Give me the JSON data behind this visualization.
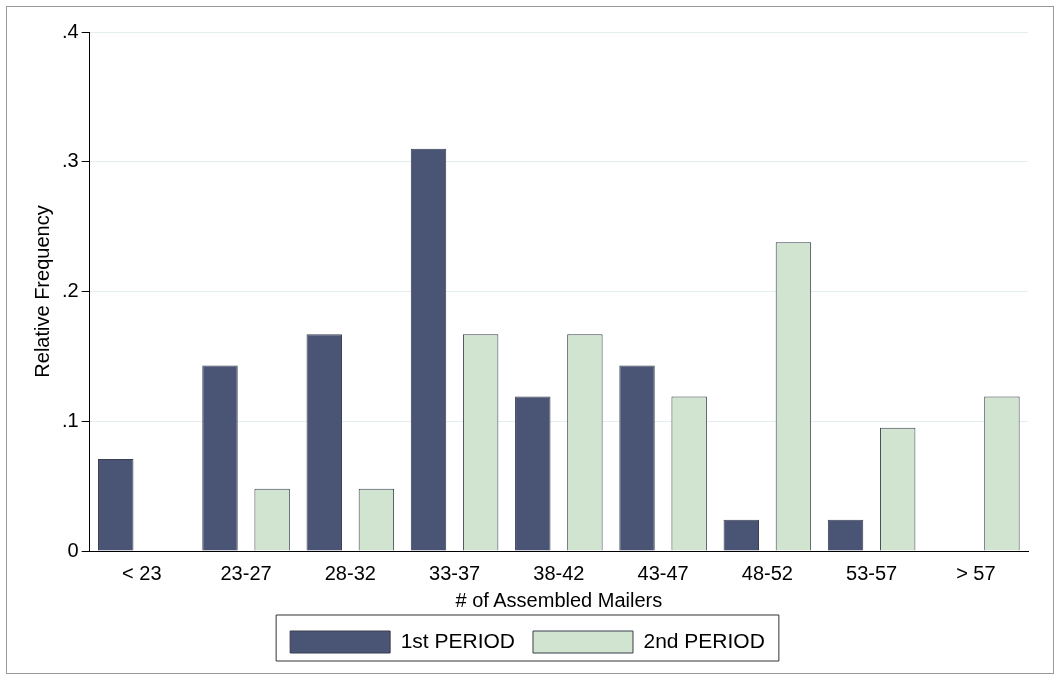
{
  "chart_data": {
    "type": "bar",
    "xlabel": "# of Assembled Mailers",
    "ylabel": "Relative Frequency",
    "categories": [
      "< 23",
      "23-27",
      "28-32",
      "33-37",
      "38-42",
      "43-47",
      "48-52",
      "53-57",
      "> 57"
    ],
    "series": [
      {
        "name": "1st PERIOD",
        "color": "#4a5475",
        "values": [
          0.071,
          0.143,
          0.167,
          0.31,
          0.119,
          0.143,
          0.024,
          0.024,
          0
        ]
      },
      {
        "name": "2nd PERIOD",
        "color": "#d0e4d0",
        "values": [
          0,
          0.048,
          0.048,
          0.167,
          0.167,
          0.119,
          0.238,
          0.095,
          0.119
        ]
      }
    ],
    "ylim": [
      0,
      0.4
    ],
    "yticks": [
      {
        "value": 0,
        "label": "0"
      },
      {
        "value": 0.1,
        "label": ".1"
      },
      {
        "value": 0.2,
        "label": ".2"
      },
      {
        "value": 0.3,
        "label": ".3"
      },
      {
        "value": 0.4,
        "label": ".4"
      }
    ],
    "grid": "y",
    "legend": "bottom"
  }
}
